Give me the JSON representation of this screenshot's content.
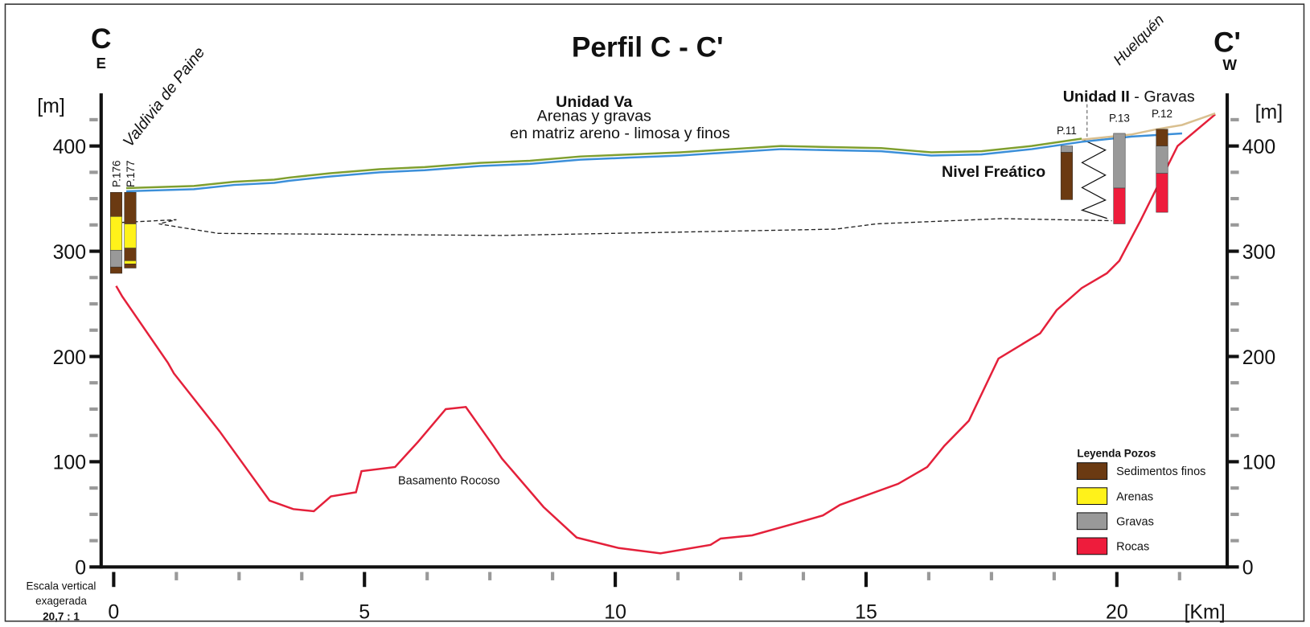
{
  "chart_data": {
    "type": "line",
    "title": "Perfil C - C'",
    "left_label": "C",
    "left_sub": "E",
    "right_label": "C'",
    "right_sub": "W",
    "y_label": "[m]",
    "y2_label": "[m]",
    "x_label": "[Km]",
    "scale_note": [
      "Escala vertical",
      "exagerada",
      "20,7 : 1"
    ],
    "annotations": {
      "left_town": "Valdivia de Paine",
      "right_town": "Huelquén",
      "unit_va": "Unidad Va",
      "unit_va_desc1": "Arenas y gravas",
      "unit_va_desc2": "en matriz areno - limosa y finos",
      "unit_ii": "Unidad II",
      "unit_ii_desc": " - Gravas",
      "water": "Nivel Freático",
      "basement": "Basamento Rocoso"
    },
    "xlim": [
      -0.25,
      22.2
    ],
    "ylim": [
      0,
      450
    ],
    "xticks": [
      0,
      5,
      10,
      15,
      20
    ],
    "x_minor_ticks": [
      1.25,
      2.5,
      3.75,
      6.25,
      7.5,
      8.75,
      11.25,
      12.5,
      13.75,
      16.25,
      17.5,
      18.75,
      21.25
    ],
    "yticks": [
      0,
      100,
      200,
      300,
      400
    ],
    "y_minor_ticks": [
      25,
      50,
      75,
      125,
      150,
      175,
      225,
      250,
      275,
      325,
      350,
      375,
      425
    ],
    "series": [
      {
        "color": "#e4203a",
        "dash": false,
        "x": [
          0.05,
          0.17,
          1.08,
          1.2,
          2.11,
          3.11,
          3.58,
          3.99,
          4.33,
          4.83,
          4.94,
          5.61,
          6.07,
          6.62,
          7.02,
          7.57,
          7.74,
          8.57,
          9.23,
          10.07,
          10.9,
          11.9,
          12.1,
          12.73,
          13.56,
          14.14,
          14.48,
          15.64,
          16.22,
          16.56,
          17.05,
          17.64,
          18.47,
          18.8,
          19.3,
          19.8,
          20.05,
          20.47,
          21.21,
          21.96
        ],
        "values": [
          267,
          257,
          194,
          184,
          129,
          63,
          55,
          53,
          67,
          71,
          91,
          95,
          119,
          150,
          152,
          115,
          103,
          57,
          28,
          18,
          13,
          21,
          27,
          30,
          41,
          49,
          59,
          79,
          95,
          115,
          139,
          198,
          222,
          244,
          265,
          279,
          291,
          329,
          400,
          430
        ]
      },
      {
        "color": "#7f9f2f",
        "dash": false,
        "x": [
          0.25,
          1.6,
          2.4,
          3.2,
          3.5,
          4.3,
          5.3,
          6.2,
          7.3,
          8.3,
          9.3,
          10.3,
          11.3,
          12.3,
          13.3,
          14.3,
          15.3,
          16.3,
          17.3,
          18.3,
          19.3
        ],
        "values": [
          360,
          362,
          366,
          368,
          370,
          374,
          378,
          380,
          384,
          386,
          390,
          392,
          394,
          397,
          400,
          399,
          398,
          394,
          395,
          400,
          407
        ]
      },
      {
        "color": "#3b8fd9",
        "dash": false,
        "x": [
          0.25,
          1.6,
          2.4,
          3.2,
          3.5,
          4.3,
          5.3,
          6.2,
          7.3,
          8.3,
          9.3,
          10.3,
          11.3,
          12.3,
          13.3,
          14.3,
          15.3,
          16.3,
          17.3,
          18.3,
          19.3,
          20.3,
          21.3
        ],
        "values": [
          357,
          359,
          363,
          365,
          367,
          371,
          375,
          377,
          381,
          383,
          387,
          389,
          391,
          394,
          397,
          396,
          395,
          391,
          392,
          397,
          404,
          409,
          412
        ]
      },
      {
        "color": "#d9bf8f",
        "dash": false,
        "x": [
          19.3,
          20.3,
          20.8,
          21.3,
          21.6,
          21.96
        ],
        "values": [
          406,
          411,
          416,
          420,
          425,
          431
        ]
      },
      {
        "color": "#222222",
        "dash": true,
        "x": [
          0,
          1.25,
          0.9,
          2.08,
          7.74,
          14.4,
          15.2,
          17.7,
          19.9
        ],
        "values": [
          327,
          330,
          326,
          317,
          315,
          321,
          326,
          331,
          329
        ]
      }
    ],
    "legend": {
      "title": "Leyenda Pozos",
      "items": [
        {
          "label": "Sedimentos finos",
          "color": "#6b3a12"
        },
        {
          "label": "Arenas",
          "color": "#fff21a"
        },
        {
          "label": "Gravas",
          "color": "#999999"
        },
        {
          "label": "Rocas",
          "color": "#ee1c3c"
        }
      ]
    },
    "wells": [
      {
        "name": "P.176",
        "x": 0.05,
        "layers": [
          {
            "top": 356,
            "bottom": 333,
            "unit": 0
          },
          {
            "top": 333,
            "bottom": 301,
            "unit": 1
          },
          {
            "top": 301,
            "bottom": 285,
            "unit": 2
          },
          {
            "top": 285,
            "bottom": 279,
            "unit": 0
          }
        ]
      },
      {
        "name": "P.177",
        "x": 0.33,
        "layers": [
          {
            "top": 356,
            "bottom": 326,
            "unit": 0
          },
          {
            "top": 326,
            "bottom": 303,
            "unit": 1
          },
          {
            "top": 303,
            "bottom": 291,
            "unit": 0
          },
          {
            "top": 291,
            "bottom": 288,
            "unit": 1
          },
          {
            "top": 288,
            "bottom": 284,
            "unit": 0
          }
        ]
      },
      {
        "name": "P.11",
        "x": 19.0,
        "layers": [
          {
            "top": 400,
            "bottom": 394,
            "unit": 2
          },
          {
            "top": 394,
            "bottom": 349,
            "unit": 0
          }
        ]
      },
      {
        "name": "P.13",
        "x": 20.05,
        "layers": [
          {
            "top": 412,
            "bottom": 360,
            "unit": 2
          },
          {
            "top": 360,
            "bottom": 326,
            "unit": 3
          }
        ]
      },
      {
        "name": "P.12",
        "x": 20.9,
        "layers": [
          {
            "top": 416,
            "bottom": 400,
            "unit": 0
          },
          {
            "top": 400,
            "bottom": 374,
            "unit": 2
          },
          {
            "top": 374,
            "bottom": 337,
            "unit": 3
          }
        ]
      }
    ]
  }
}
